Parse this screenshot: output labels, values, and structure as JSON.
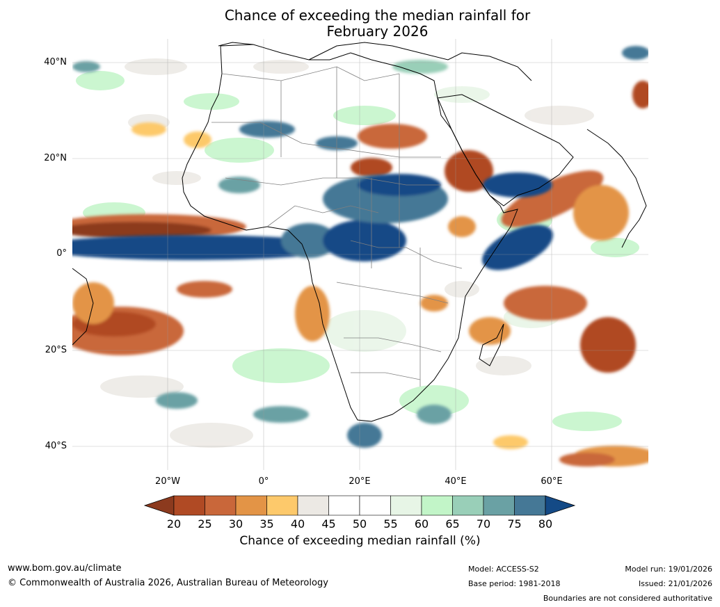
{
  "title": {
    "line1": "Chance of exceeding the median rainfall for",
    "line2": "February 2026"
  },
  "map": {
    "latitude_labels": [
      "40°N",
      "20°N",
      "0°",
      "20°S",
      "40°S"
    ],
    "longitude_labels": [
      "20°W",
      "0°",
      "20°E",
      "40°E",
      "60°E"
    ],
    "land_outline_color": "#000000",
    "border_color": "#808080"
  },
  "legend": {
    "label": "Chance of exceeding median rainfall (%)",
    "ticks": [
      "20",
      "25",
      "30",
      "35",
      "40",
      "45",
      "50",
      "55",
      "60",
      "65",
      "70",
      "75",
      "80"
    ],
    "colors": [
      "#8c3a1e",
      "#b04a24",
      "#c9673a",
      "#e39446",
      "#fdc96b",
      "#ece9e4",
      "#ffffff",
      "#ffffff",
      "#e7f5e6",
      "#c2f5c8",
      "#99cfb8",
      "#6aa1a4",
      "#457896",
      "#144a86"
    ]
  },
  "footer": {
    "website": "www.bom.gov.au/climate",
    "copyright": "© Commonwealth of Australia 2026, Australian Bureau of Meteorology",
    "model": "Model: ACCESS-S2",
    "base_period": "Base period: 1981-2018",
    "model_run": "Model run: 19/01/2026",
    "issued": "Issued: 21/01/2026",
    "disclaimer": "Boundaries are not considered authoritative"
  }
}
